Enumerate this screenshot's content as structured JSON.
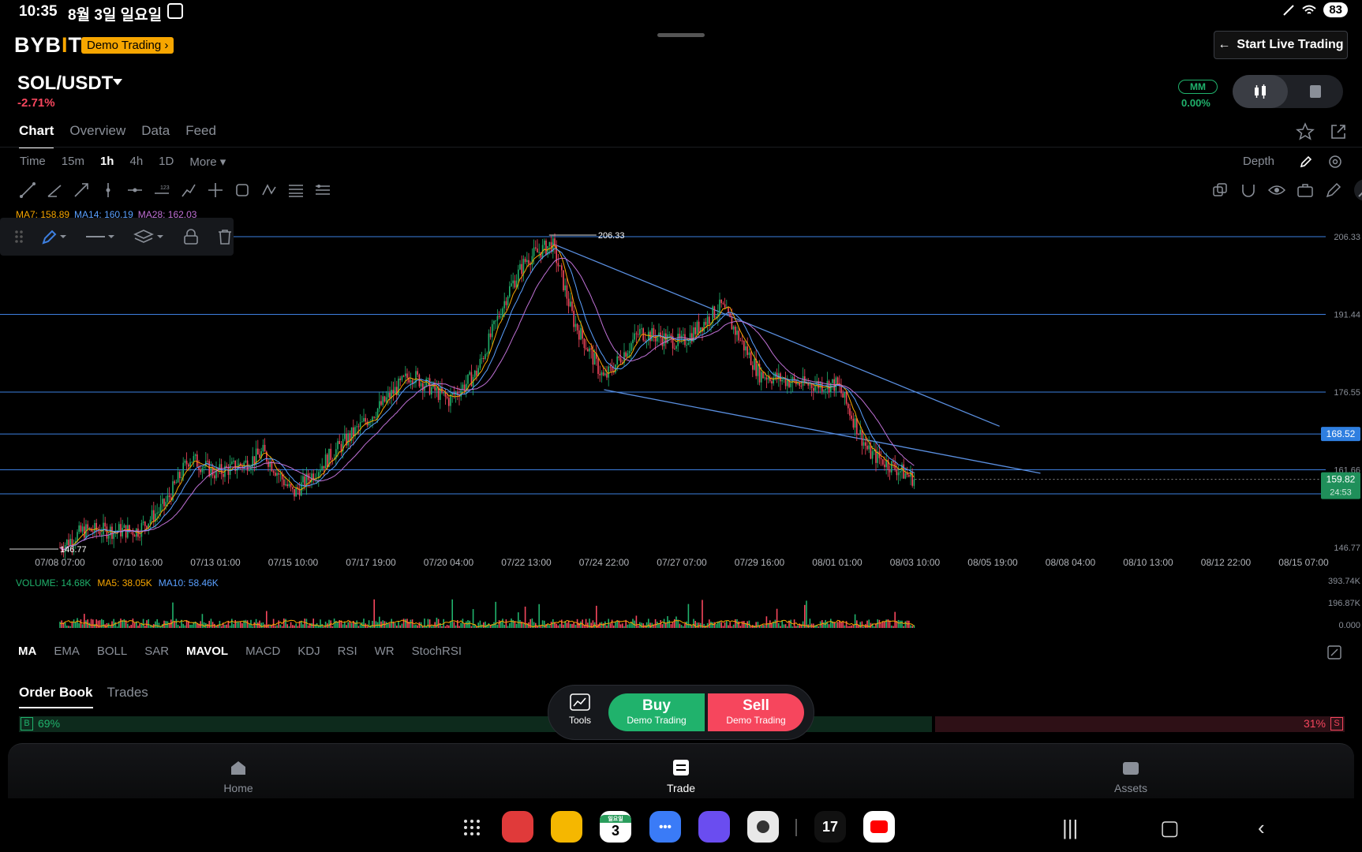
{
  "status_bar": {
    "time": "10:35",
    "date": "8월 3일 일요일",
    "battery": "83"
  },
  "header": {
    "logo_text": "BYB",
    "logo_tick": "I",
    "logo_tail": "T",
    "demo_badge": "Demo Trading ›",
    "live_button": "Start Live Trading",
    "pair": "SOL/USDT",
    "change": "-2.71%",
    "mm_label": "MM",
    "mm_value": "0.00%"
  },
  "tabs": [
    "Chart",
    "Overview",
    "Data",
    "Feed"
  ],
  "intervals": [
    "Time",
    "15m",
    "1h",
    "4h",
    "1D",
    "More ▾"
  ],
  "depth_label": "Depth",
  "ma_legend": {
    "ma7": "MA7: 158.89",
    "ma14": "MA14: 160.19",
    "ma28": "MA28: 162.03"
  },
  "chart_data": {
    "type": "candlestick",
    "pair": "SOL/USDT",
    "interval": "1h",
    "x_ticks": [
      "07/08 07:00",
      "07/10 16:00",
      "07/13 01:00",
      "07/15 10:00",
      "07/17 19:00",
      "07/20 04:00",
      "07/22 13:00",
      "07/24 22:00",
      "07/27 07:00",
      "07/29 16:00",
      "08/01 01:00",
      "08/03 10:00",
      "08/05 19:00",
      "08/08 04:00",
      "08/10 13:00",
      "08/12 22:00",
      "08/15 07:00"
    ],
    "y_ticks": [
      "206.33",
      "191.44",
      "176.55",
      "161.66",
      "146.77"
    ],
    "ylim": [
      146.77,
      206.33
    ],
    "high_label": "206.33",
    "low_label": "146.77",
    "price_series": [
      [
        "07/08 07:00",
        146.8
      ],
      [
        "07/09 00:00",
        150
      ],
      [
        "07/10 16:00",
        150
      ],
      [
        "07/11 12:00",
        155
      ],
      [
        "07/12 06:00",
        164
      ],
      [
        "07/13 01:00",
        161
      ],
      [
        "07/14 00:00",
        163
      ],
      [
        "07/14 12:00",
        165
      ],
      [
        "07/15 10:00",
        157
      ],
      [
        "07/16 12:00",
        164
      ],
      [
        "07/17 19:00",
        172
      ],
      [
        "07/19 00:00",
        180
      ],
      [
        "07/20 04:00",
        175
      ],
      [
        "07/21 00:00",
        180
      ],
      [
        "07/22 00:00",
        196
      ],
      [
        "07/22 13:00",
        202
      ],
      [
        "07/23 08:00",
        205
      ],
      [
        "07/24 00:00",
        190
      ],
      [
        "07/24 22:00",
        179
      ],
      [
        "07/26 00:00",
        188
      ],
      [
        "07/27 07:00",
        186
      ],
      [
        "07/28 12:00",
        193
      ],
      [
        "07/29 16:00",
        180
      ],
      [
        "07/31 00:00",
        178
      ],
      [
        "08/01 01:00",
        178
      ],
      [
        "08/02 00:00",
        165
      ],
      [
        "08/03 10:00",
        159.8
      ]
    ],
    "h_lines": [
      206.33,
      191.44,
      176.55,
      168.52,
      161.66
    ],
    "trend_lines": [
      {
        "from": [
          "07/23 08:00",
          205
        ],
        "to": [
          "08/06 00:00",
          170
        ]
      },
      {
        "from": [
          "07/24 22:00",
          177
        ],
        "to": [
          "08/07 06:00",
          161
        ]
      }
    ],
    "level_label": "168.52",
    "last_price": "159.82",
    "countdown": "24:53",
    "volume": {
      "label": "VOLUME: 14.68K",
      "ma5": "MA5: 38.05K",
      "ma10": "MA10: 58.46K",
      "y_ticks": [
        "393.74K",
        "196.87K",
        "0.000"
      ]
    }
  },
  "indicator_tabs": [
    "MA",
    "EMA",
    "BOLL",
    "SAR",
    "MAVOL",
    "MACD",
    "KDJ",
    "RSI",
    "WR",
    "StochRSI"
  ],
  "order_book": {
    "tabs": [
      "Order Book",
      "Trades"
    ],
    "buy_label": "B",
    "buy_pct": "69%",
    "sell_label": "S",
    "sell_pct": "31%",
    "buy_ratio": 0.69
  },
  "trade_panel": {
    "tools": "Tools",
    "buy": "Buy",
    "buy_sub": "Demo Trading",
    "sell": "Sell",
    "sell_sub": "Demo Trading"
  },
  "bottom_nav": [
    "Home",
    "Trade",
    "Assets"
  ],
  "dock": {
    "calendar_day": "3",
    "calendar_top": "일요일"
  },
  "colors": {
    "up": "#20b26c",
    "down": "#f6465d",
    "accent": "#f7a600",
    "line": "#3d7fe0"
  }
}
